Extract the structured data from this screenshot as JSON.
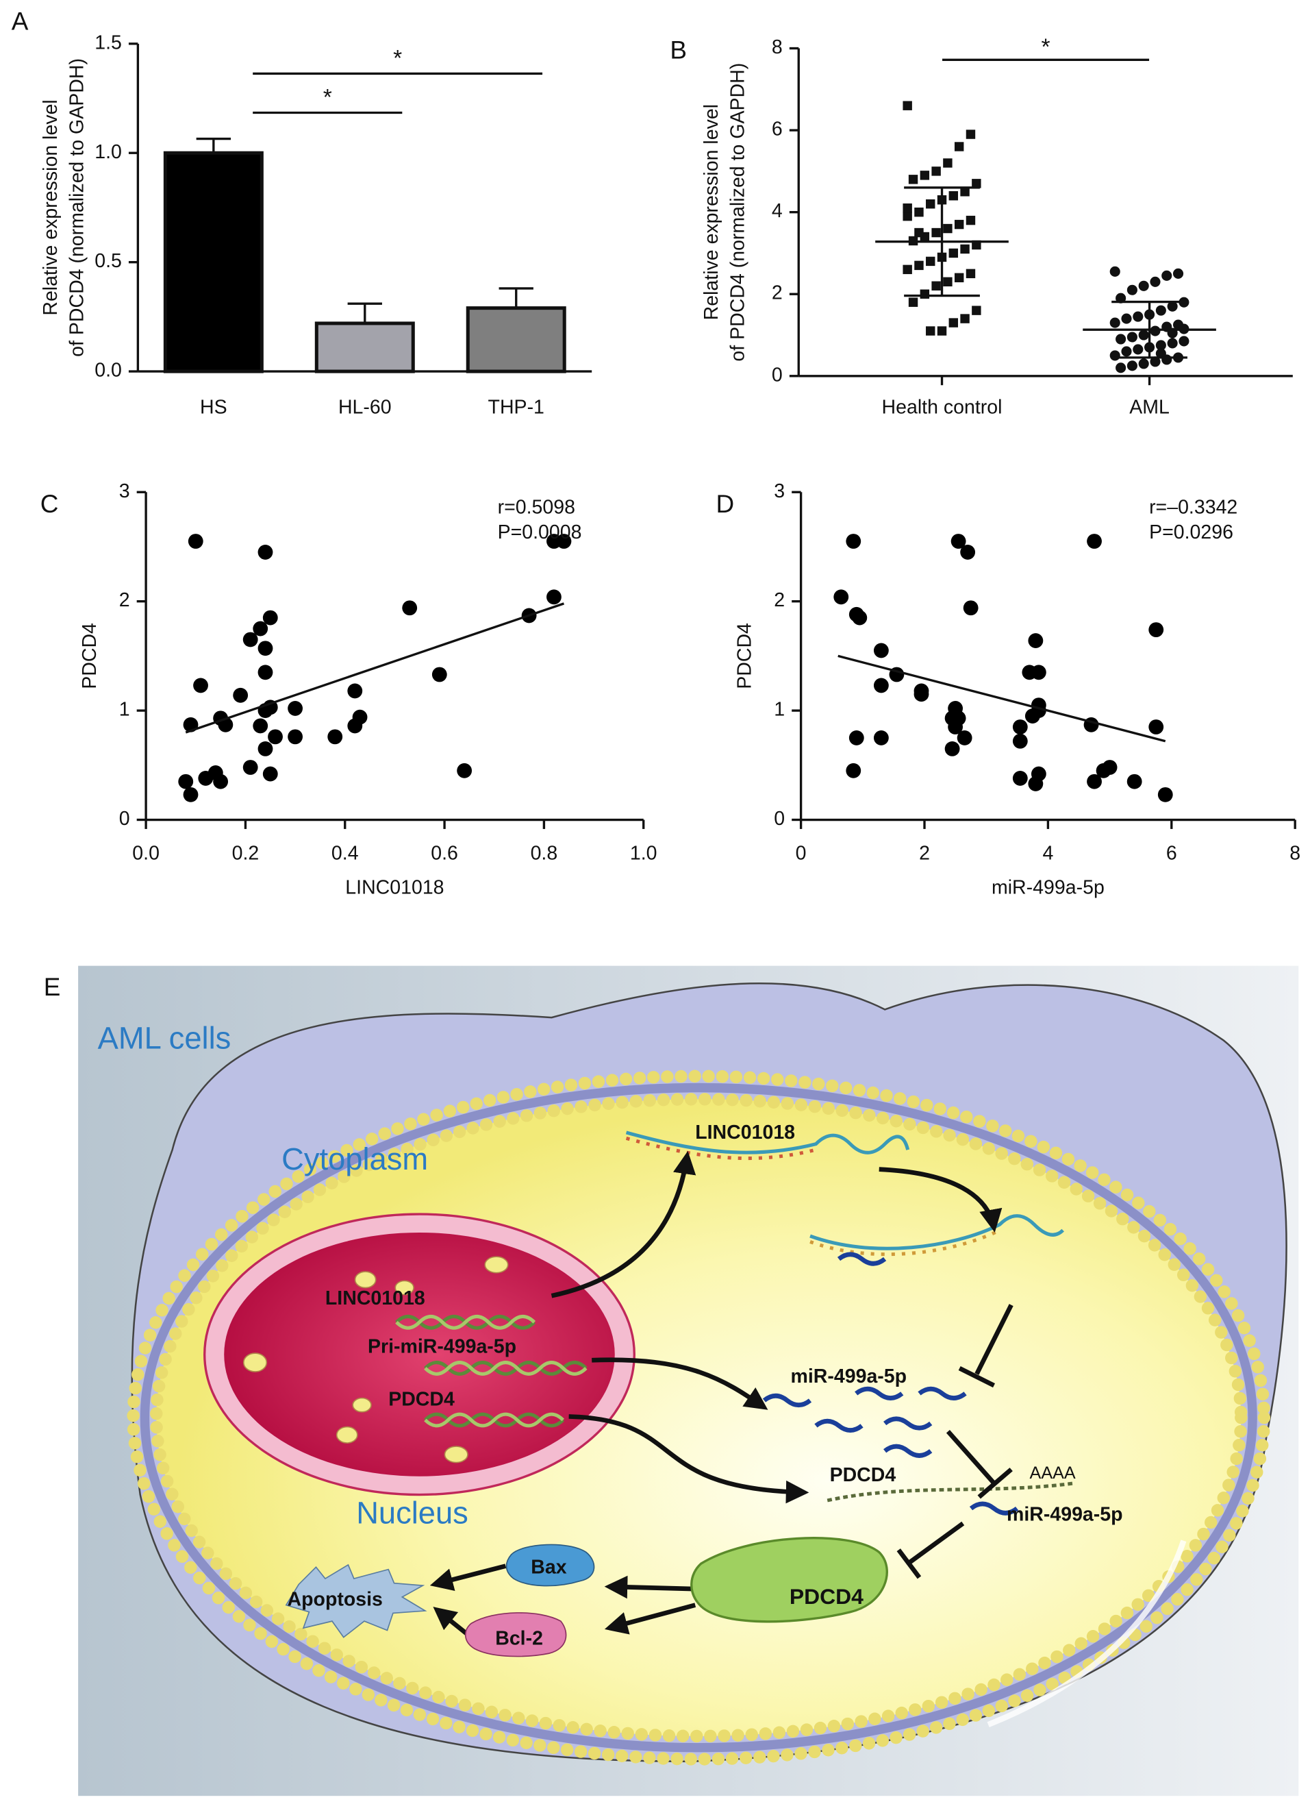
{
  "chart_data": [
    {
      "panel": "A",
      "type": "bar",
      "ylabel": [
        "Relative expression level",
        "of PDCD4 (normalized to GAPDH)"
      ],
      "categories": [
        "HS",
        "HL-60",
        "THP-1"
      ],
      "values": [
        1.0,
        0.22,
        0.29
      ],
      "errors": [
        0.065,
        0.09,
        0.09
      ],
      "colors": [
        "#000000",
        "#a3a3ab",
        "#7f7f7f"
      ],
      "ylim": [
        0,
        1.5
      ],
      "yticks": [
        {
          "value": 0,
          "label": "0.0"
        },
        0.5,
        {
          "value": 1,
          "label": "1.0"
        },
        1.5
      ],
      "annotations": [
        "*",
        "*"
      ]
    },
    {
      "panel": "B",
      "type": "strip",
      "ylabel": [
        "Relative expression level",
        "of PDCD4 (normalized to GAPDH)"
      ],
      "categories": [
        "Health control",
        "AML"
      ],
      "groups": [
        {
          "marker": "square",
          "mean": 3.28,
          "sd": 1.32,
          "values": [
            6.6,
            5.9,
            5.6,
            5.2,
            5.0,
            4.9,
            4.8,
            4.7,
            4.5,
            4.4,
            4.3,
            4.2,
            4.0,
            3.9,
            3.8,
            3.7,
            3.6,
            3.5,
            3.4,
            3.3,
            3.2,
            3.1,
            3.0,
            2.9,
            2.8,
            2.7,
            2.6,
            2.5,
            2.4,
            2.3,
            2.2,
            2.0,
            1.8,
            1.6,
            1.4,
            1.3,
            1.1,
            1.1,
            3.5,
            4.1
          ]
        },
        {
          "marker": "circle",
          "mean": 1.13,
          "sd": 0.68,
          "values": [
            2.55,
            2.5,
            2.45,
            2.3,
            2.2,
            2.1,
            1.9,
            1.8,
            1.7,
            1.6,
            1.5,
            1.45,
            1.4,
            1.3,
            1.25,
            1.2,
            1.1,
            1.0,
            0.95,
            0.9,
            0.85,
            0.8,
            0.75,
            0.7,
            0.65,
            0.6,
            0.5,
            0.45,
            0.4,
            0.35,
            0.3,
            0.25,
            0.2,
            1.15,
            1.05,
            0.55
          ]
        }
      ],
      "ylim": [
        0,
        8
      ],
      "yticks": [
        0,
        2,
        4,
        6,
        8
      ],
      "annotations": [
        "*"
      ]
    },
    {
      "panel": "C",
      "type": "scatter",
      "xlabel": "LINC01018",
      "ylabel": "PDCD4",
      "stats": [
        "r=0.5098",
        "P=0.0008"
      ],
      "x": [
        0.1,
        0.24,
        0.82,
        0.84,
        0.53,
        0.82,
        0.77,
        0.25,
        0.23,
        0.21,
        0.24,
        0.24,
        0.59,
        0.11,
        0.19,
        0.42,
        0.25,
        0.24,
        0.3,
        0.15,
        0.16,
        0.09,
        0.43,
        0.42,
        0.38,
        0.3,
        0.26,
        0.24,
        0.21,
        0.14,
        0.12,
        0.15,
        0.08,
        0.09,
        0.25,
        0.64,
        0.23
      ],
      "y": [
        2.55,
        2.45,
        2.55,
        2.55,
        1.94,
        2.04,
        1.87,
        1.85,
        1.75,
        1.65,
        1.57,
        1.35,
        1.33,
        1.23,
        1.14,
        1.18,
        1.03,
        1.0,
        1.02,
        0.93,
        0.87,
        0.87,
        0.94,
        0.86,
        0.76,
        0.76,
        0.76,
        0.65,
        0.48,
        0.43,
        0.38,
        0.35,
        0.35,
        0.23,
        0.42,
        0.45,
        0.86
      ],
      "fit": {
        "x": [
          0.08,
          0.84
        ],
        "y": [
          0.8,
          1.98
        ]
      },
      "xlim": [
        0,
        1
      ],
      "xticks": [
        {
          "value": 0,
          "label": "0.0"
        },
        0.2,
        0.4,
        0.6,
        0.8,
        {
          "value": 1,
          "label": "1.0"
        }
      ],
      "ylim": [
        0,
        3
      ],
      "yticks": [
        0,
        1,
        2,
        3
      ]
    },
    {
      "panel": "D",
      "type": "scatter",
      "xlabel": "miR-499a-5p",
      "ylabel": "PDCD4",
      "stats": [
        "r=–0.3342",
        "P=0.0296"
      ],
      "x": [
        0.65,
        0.85,
        0.9,
        0.95,
        1.3,
        1.55,
        1.3,
        1.95,
        1.95,
        2.55,
        2.7,
        2.75,
        2.5,
        2.45,
        2.55,
        2.5,
        2.65,
        2.45,
        0.9,
        1.3,
        0.85,
        3.55,
        3.55,
        3.55,
        3.8,
        3.85,
        3.7,
        3.85,
        3.8,
        3.85,
        3.85,
        3.75,
        4.7,
        4.75,
        4.75,
        4.9,
        5.0,
        5.4,
        5.75,
        5.75,
        5.9
      ],
      "y": [
        2.04,
        2.55,
        1.88,
        1.85,
        1.55,
        1.33,
        1.23,
        1.18,
        1.15,
        2.55,
        2.45,
        1.94,
        1.02,
        0.93,
        0.93,
        0.85,
        0.75,
        0.65,
        0.75,
        0.75,
        0.45,
        0.85,
        0.72,
        0.38,
        0.33,
        0.42,
        1.35,
        1.35,
        1.64,
        1.0,
        1.05,
        0.95,
        0.87,
        2.55,
        0.35,
        0.45,
        0.48,
        0.35,
        1.74,
        0.85,
        0.23
      ],
      "fit": {
        "x": [
          0.6,
          5.9
        ],
        "y": [
          1.5,
          0.72
        ]
      },
      "xlim": [
        0,
        8
      ],
      "xticks": [
        0,
        2,
        4,
        6,
        8
      ],
      "ylim": [
        0,
        3
      ],
      "yticks": [
        0,
        1,
        2,
        3
      ]
    }
  ],
  "diagram": {
    "panel": "E",
    "cell": "AML cells",
    "cytoplasm": "Cytoplasm",
    "nucleus": "Nucleus",
    "nucleus_genes": [
      "LINC01018",
      "Pri-miR-499a-5p",
      "PDCD4"
    ],
    "lncrna": "LINC01018",
    "mirna": "miR-499a-5p",
    "mrna": "PDCD4",
    "polya": "AAAA",
    "mirna_bound": "miR-499a-5p",
    "protein": "PDCD4",
    "bax": "Bax",
    "bcl2": "Bcl-2",
    "apoptosis": "Apoptosis"
  }
}
